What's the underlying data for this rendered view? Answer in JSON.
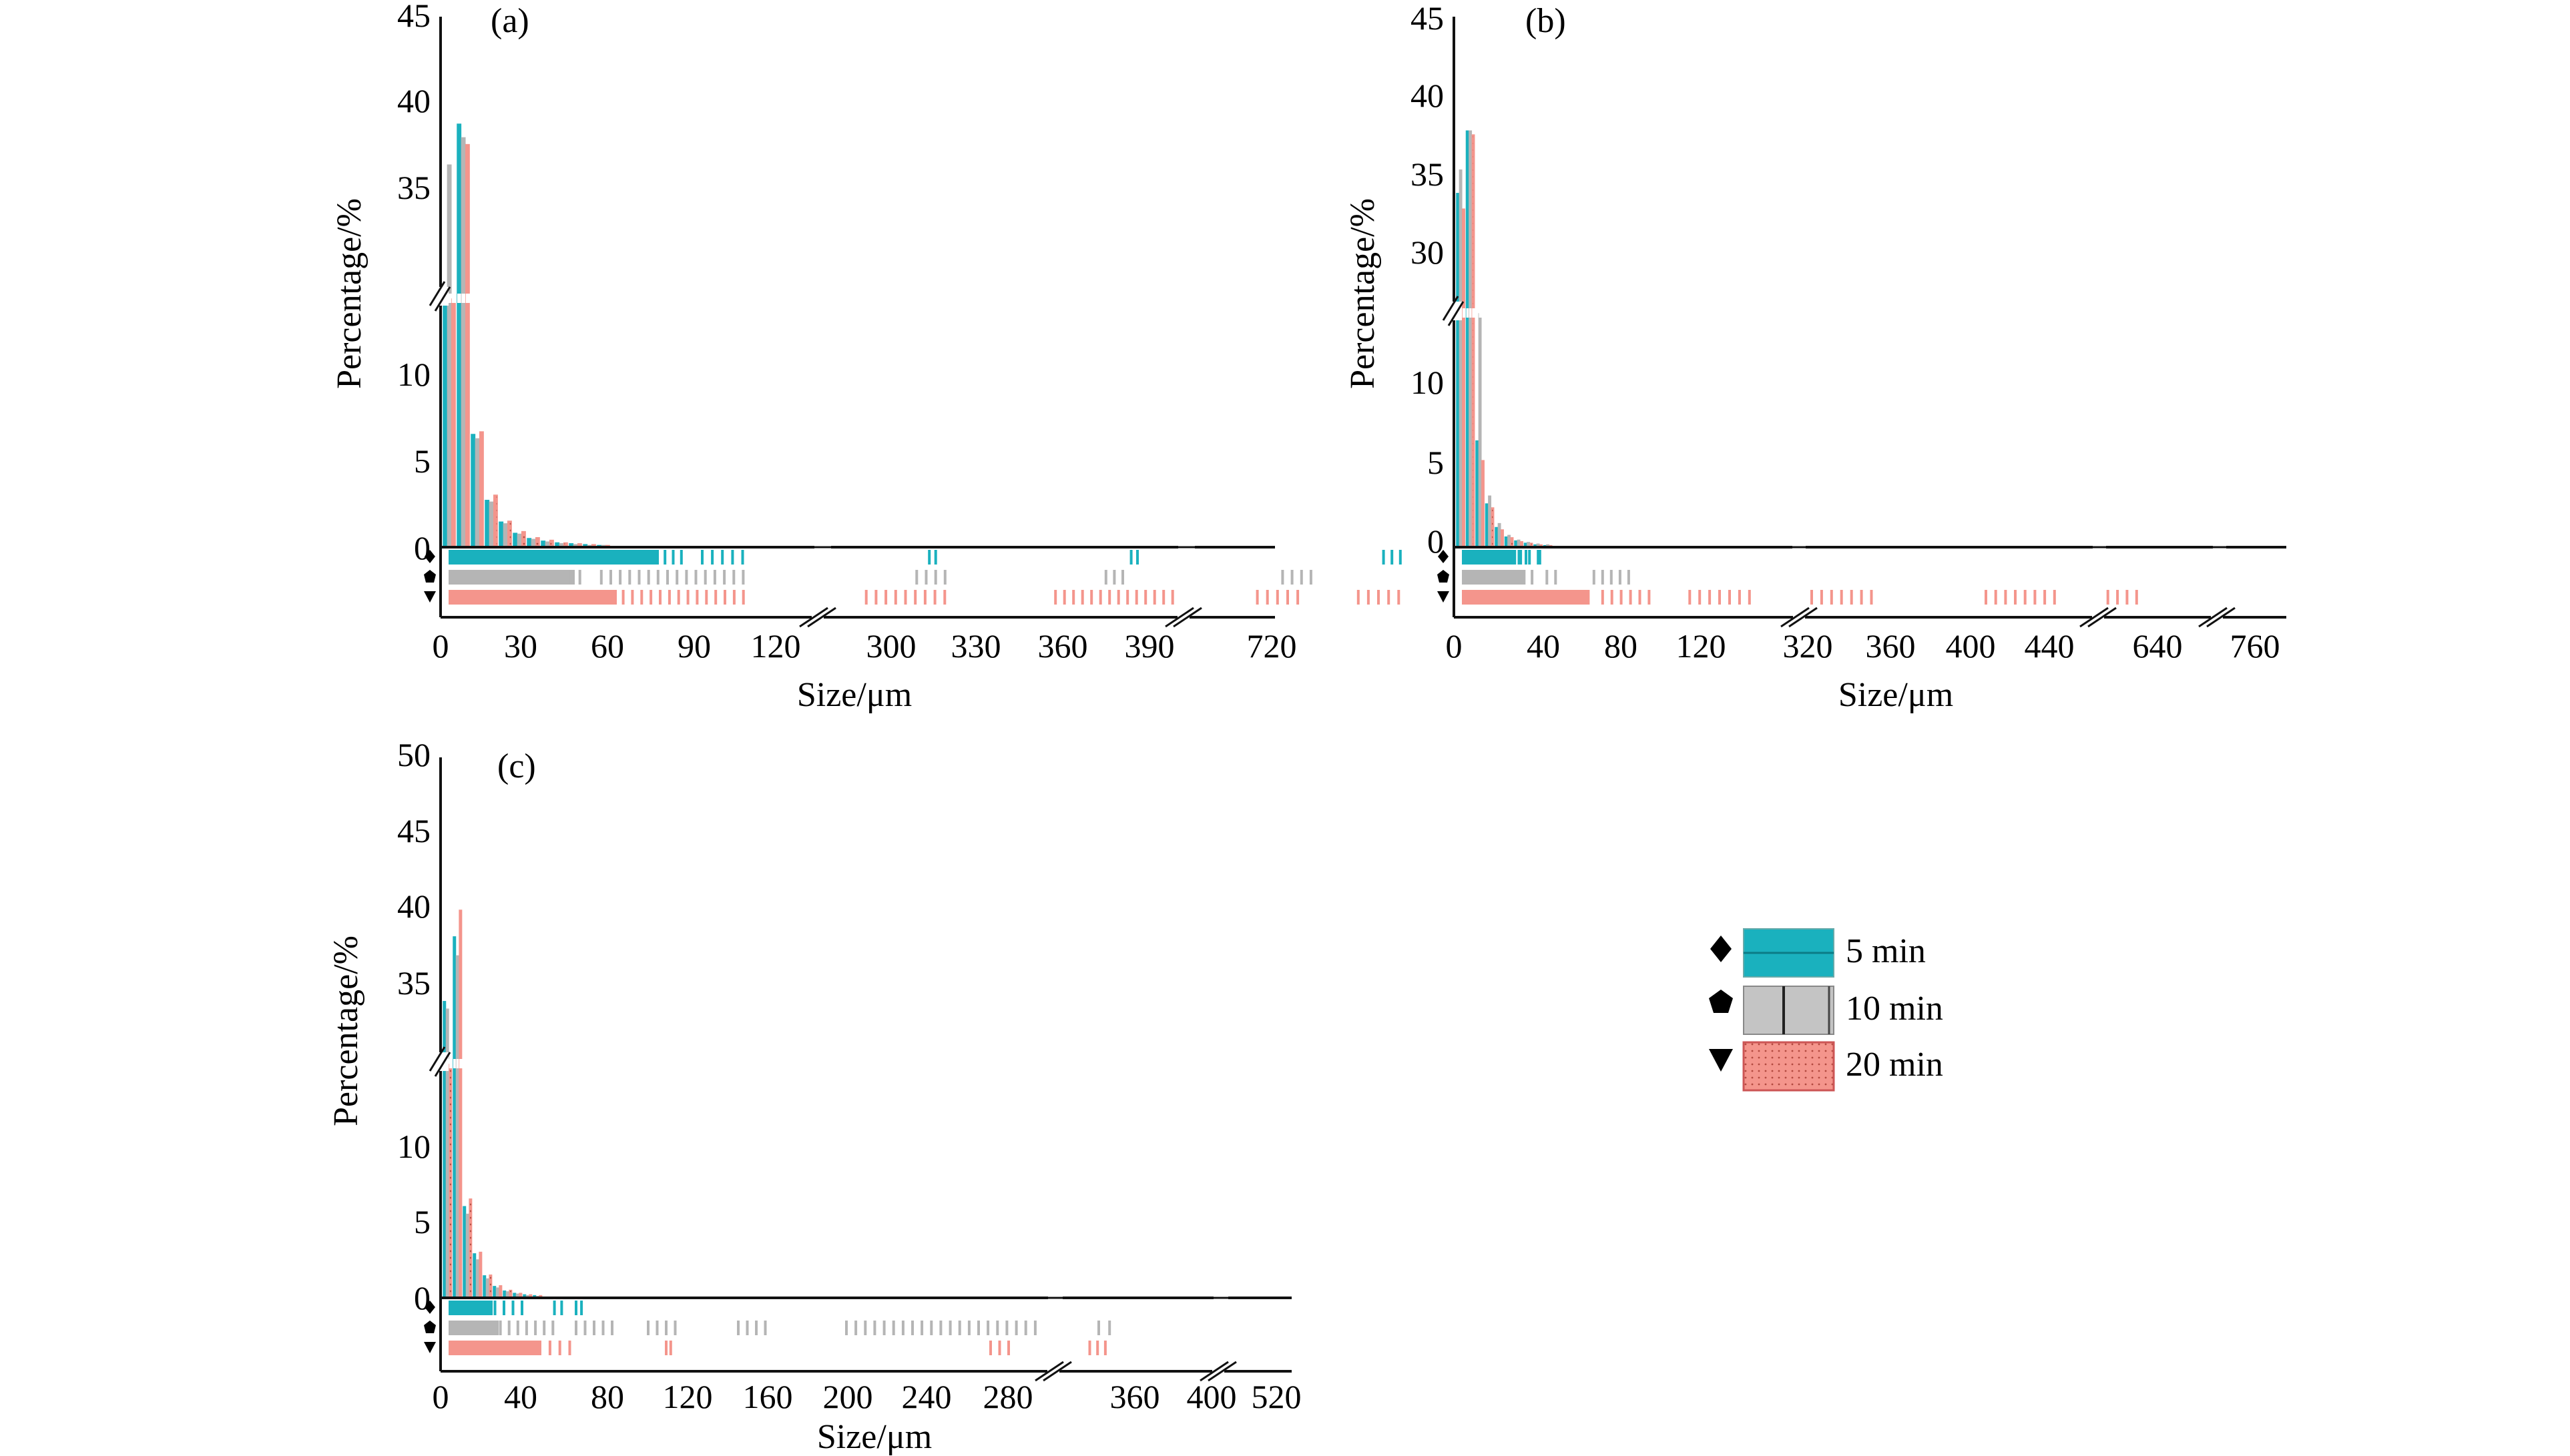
{
  "colors": {
    "s5": "#1ab1be",
    "s10": "#b5b5b5",
    "s20": "#f4958c",
    "axis": "#111111"
  },
  "legend": {
    "items": [
      {
        "symbol": "diamond",
        "label": "5 min"
      },
      {
        "symbol": "pentagon",
        "label": "10 min"
      },
      {
        "symbol": "triangle-down",
        "label": "20 min"
      }
    ]
  },
  "chart_data": [
    {
      "panel": "(a)",
      "type": "bar",
      "xlabel": "Size/μm",
      "ylabel": "Percentage/%",
      "y_ticks_lower": [
        "0",
        "5",
        "10"
      ],
      "y_ticks_upper": [
        "35",
        "40",
        "45"
      ],
      "x_tick_labels": [
        "0",
        "30",
        "60",
        "90",
        "120",
        "300",
        "330",
        "360",
        "390",
        "720"
      ],
      "x": [
        2.5,
        7.5,
        12.5,
        17.5,
        22.5,
        27.5,
        32.5,
        37.5,
        42.5,
        47.5,
        52.5,
        57.5
      ],
      "series": [
        {
          "name": "5 min",
          "values": [
            25,
            42,
            13,
            5.4,
            2.9,
            1.6,
            1.0,
            0.7,
            0.5,
            0.4,
            0.3,
            0.2
          ]
        },
        {
          "name": "10 min",
          "values": [
            36,
            40,
            12.5,
            5.2,
            2.7,
            1.5,
            0.9,
            0.6,
            0.4,
            0.3,
            0.2,
            0.2
          ]
        },
        {
          "name": "20 min",
          "values": [
            20,
            39,
            13.3,
            6.0,
            3.0,
            1.8,
            1.1,
            0.8,
            0.5,
            0.4,
            0.3,
            0.2
          ]
        }
      ]
    },
    {
      "panel": "(b)",
      "type": "bar",
      "xlabel": "Size/μm",
      "ylabel": "Percentage/%",
      "y_ticks_lower": [
        "0",
        "5",
        "10"
      ],
      "y_ticks_upper": [
        "30",
        "35",
        "40",
        "45"
      ],
      "x_tick_labels": [
        "0",
        "40",
        "80",
        "120",
        "320",
        "360",
        "400",
        "440",
        "640",
        "760"
      ],
      "x": [
        2.5,
        7.5,
        12.5,
        17.5,
        22.5,
        27.5,
        32.5,
        37.5,
        42.5,
        47.5
      ],
      "series": [
        {
          "name": "5 min",
          "values": [
            33,
            41,
            13.5,
            5.5,
            2.5,
            1.3,
            0.8,
            0.5,
            0.3,
            0.2
          ]
        },
        {
          "name": "10 min",
          "values": [
            36,
            41,
            16,
            6.5,
            3.0,
            1.5,
            0.9,
            0.6,
            0.4,
            0.3
          ]
        },
        {
          "name": "20 min",
          "values": [
            31,
            40.5,
            11,
            5.0,
            2.2,
            1.2,
            0.7,
            0.5,
            0.3,
            0.2
          ]
        }
      ]
    },
    {
      "panel": "(c)",
      "type": "bar",
      "xlabel": "Size/μm",
      "ylabel": "Percentage/%",
      "y_ticks_lower": [
        "0",
        "5",
        "10"
      ],
      "y_ticks_upper": [
        "35",
        "40",
        "45",
        "50"
      ],
      "x_tick_labels": [
        "0",
        "40",
        "80",
        "120",
        "160",
        "200",
        "240",
        "280",
        "360",
        "400",
        "520"
      ],
      "x": [
        2.5,
        7.5,
        12.5,
        17.5,
        22.5,
        27.5,
        32.5,
        37.5,
        42.5,
        47.5
      ],
      "series": [
        {
          "name": "5 min",
          "values": [
            33,
            41.5,
            12,
            5.8,
            2.9,
            1.5,
            0.9,
            0.6,
            0.4,
            0.3
          ]
        },
        {
          "name": "10 min",
          "values": [
            32,
            39,
            11,
            5.0,
            2.5,
            1.3,
            0.8,
            0.5,
            0.3,
            0.2
          ]
        },
        {
          "name": "20 min",
          "values": [
            30,
            45,
            13,
            6.0,
            3.0,
            1.6,
            1.0,
            0.6,
            0.4,
            0.3
          ]
        }
      ]
    }
  ]
}
